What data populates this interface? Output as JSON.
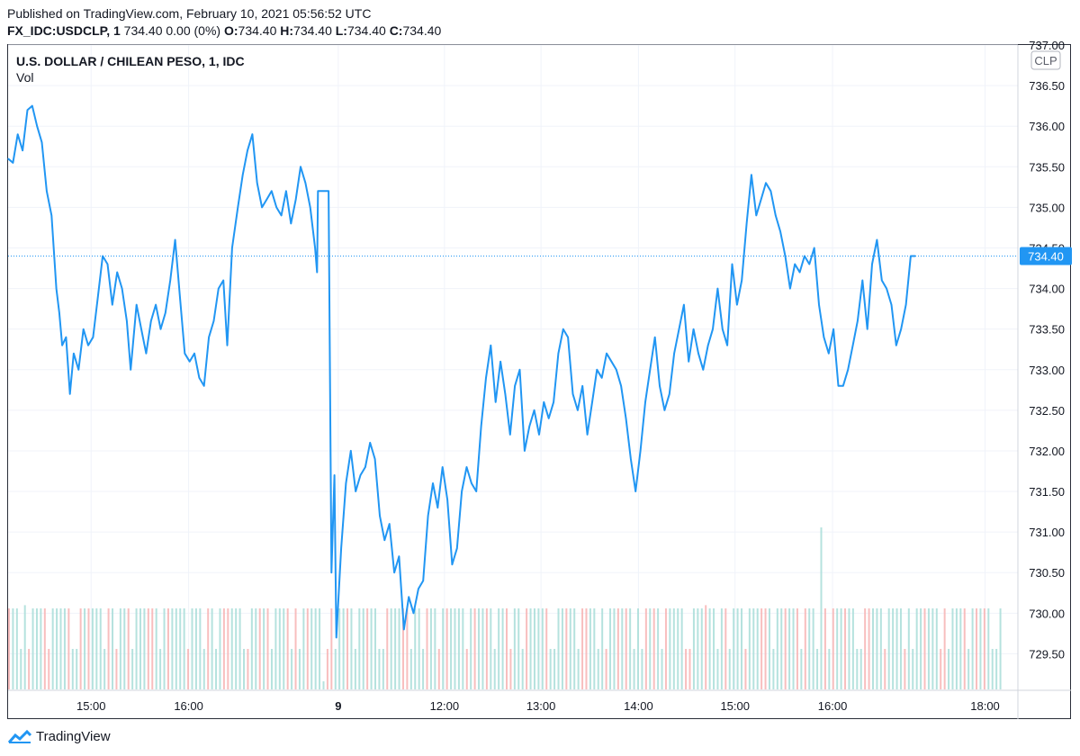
{
  "header": {
    "published": "Published on TradingView.com, February 10, 2021 05:56:52 UTC",
    "symbol": "FX_IDC:USDCLP, 1",
    "quote": " 734.40 0.00 (0%) ",
    "o_label": "O:",
    "o_value": "734.40",
    "h_label": "H:",
    "h_value": "734.40",
    "l_label": "L:",
    "l_value": "734.40",
    "c_label": "C:",
    "c_value": "734.40"
  },
  "footer": {
    "brand": "TradingView"
  },
  "colors": {
    "line": "#2196f3",
    "vol_up": "#a8ddd8",
    "vol_down": "#f7b3b3",
    "grid": "#f0f3fa",
    "last_price_bg": "#2196f3"
  },
  "chart_data": {
    "type": "line",
    "title": "U.S. DOLLAR / CHILEAN PESO, 1, IDC",
    "subtitle": "Vol",
    "currency": "CLP",
    "last_price": "734.40",
    "ylim": [
      729.05,
      737.0
    ],
    "y_ticks": [
      "737.00",
      "736.50",
      "736.00",
      "735.50",
      "735.00",
      "734.50",
      "734.00",
      "733.50",
      "733.00",
      "732.50",
      "732.00",
      "731.50",
      "731.00",
      "730.50",
      "730.00",
      "729.50"
    ],
    "x_ticks": [
      {
        "label": "15:00",
        "bold": false,
        "t": 8.6
      },
      {
        "label": "16:00",
        "bold": false,
        "t": 18.7
      },
      {
        "label": "9",
        "bold": true,
        "t": 34.2
      },
      {
        "label": "12:00",
        "bold": false,
        "t": 45.2
      },
      {
        "label": "13:00",
        "bold": false,
        "t": 55.2
      },
      {
        "label": "14:00",
        "bold": false,
        "t": 65.3
      },
      {
        "label": "15:00",
        "bold": false,
        "t": 75.3
      },
      {
        "label": "16:00",
        "bold": false,
        "t": 85.4
      },
      {
        "label": "18:00",
        "bold": false,
        "t": 101.2
      }
    ],
    "series": [
      {
        "values": [
          [
            0,
            735.6
          ],
          [
            0.5,
            735.55
          ],
          [
            1,
            735.9
          ],
          [
            1.5,
            735.7
          ],
          [
            2,
            736.2
          ],
          [
            2.5,
            736.25
          ],
          [
            3,
            736.0
          ],
          [
            3.5,
            735.8
          ],
          [
            4,
            735.2
          ],
          [
            4.5,
            734.9
          ],
          [
            5,
            734.0
          ],
          [
            5.3,
            733.7
          ],
          [
            5.6,
            733.3
          ],
          [
            6,
            733.4
          ],
          [
            6.4,
            732.7
          ],
          [
            6.8,
            733.2
          ],
          [
            7.3,
            733.0
          ],
          [
            7.8,
            733.5
          ],
          [
            8.3,
            733.3
          ],
          [
            8.8,
            733.4
          ],
          [
            9.3,
            733.9
          ],
          [
            9.8,
            734.4
          ],
          [
            10.3,
            734.3
          ],
          [
            10.8,
            733.8
          ],
          [
            11.3,
            734.2
          ],
          [
            11.8,
            734.0
          ],
          [
            12.3,
            733.6
          ],
          [
            12.7,
            733.0
          ],
          [
            13.3,
            733.8
          ],
          [
            13.8,
            733.5
          ],
          [
            14.3,
            733.2
          ],
          [
            14.8,
            733.6
          ],
          [
            15.3,
            733.8
          ],
          [
            15.8,
            733.5
          ],
          [
            16.3,
            733.7
          ],
          [
            16.8,
            734.1
          ],
          [
            17.3,
            734.6
          ],
          [
            17.8,
            733.9
          ],
          [
            18.3,
            733.2
          ],
          [
            18.8,
            733.1
          ],
          [
            19.3,
            733.2
          ],
          [
            19.8,
            732.9
          ],
          [
            20.3,
            732.8
          ],
          [
            20.8,
            733.4
          ],
          [
            21.3,
            733.6
          ],
          [
            21.8,
            734.0
          ],
          [
            22.3,
            734.1
          ],
          [
            22.7,
            733.3
          ],
          [
            23.2,
            734.5
          ],
          [
            23.8,
            735.0
          ],
          [
            24.3,
            735.4
          ],
          [
            24.8,
            735.7
          ],
          [
            25.3,
            735.9
          ],
          [
            25.8,
            735.3
          ],
          [
            26.3,
            735.0
          ],
          [
            26.8,
            735.1
          ],
          [
            27.3,
            735.2
          ],
          [
            27.8,
            735.0
          ],
          [
            28.3,
            734.9
          ],
          [
            28.8,
            735.2
          ],
          [
            29.3,
            734.8
          ],
          [
            29.8,
            735.1
          ],
          [
            30.3,
            735.5
          ],
          [
            30.8,
            735.3
          ],
          [
            31.3,
            735.0
          ],
          [
            31.8,
            734.5
          ],
          [
            32.0,
            734.2
          ],
          [
            32.1,
            735.2
          ],
          [
            33.2,
            735.2
          ],
          [
            33.5,
            730.5
          ],
          [
            33.8,
            731.7
          ],
          [
            34.0,
            729.7
          ],
          [
            34.5,
            730.8
          ],
          [
            35.0,
            731.6
          ],
          [
            35.5,
            732.0
          ],
          [
            36.0,
            731.5
          ],
          [
            36.5,
            731.7
          ],
          [
            37.0,
            731.8
          ],
          [
            37.5,
            732.1
          ],
          [
            38.0,
            731.9
          ],
          [
            38.5,
            731.2
          ],
          [
            39.0,
            730.9
          ],
          [
            39.5,
            731.1
          ],
          [
            40.0,
            730.5
          ],
          [
            40.5,
            730.7
          ],
          [
            41.0,
            729.8
          ],
          [
            41.5,
            730.2
          ],
          [
            42.0,
            730.0
          ],
          [
            42.5,
            730.3
          ],
          [
            43.0,
            730.4
          ],
          [
            43.5,
            731.2
          ],
          [
            44.0,
            731.6
          ],
          [
            44.5,
            731.3
          ],
          [
            45.0,
            731.8
          ],
          [
            45.5,
            731.4
          ],
          [
            46.0,
            730.6
          ],
          [
            46.5,
            730.8
          ],
          [
            47.0,
            731.5
          ],
          [
            47.5,
            731.8
          ],
          [
            48.0,
            731.6
          ],
          [
            48.5,
            731.5
          ],
          [
            49.0,
            732.3
          ],
          [
            49.5,
            732.9
          ],
          [
            50.0,
            733.3
          ],
          [
            50.5,
            732.6
          ],
          [
            51.0,
            733.1
          ],
          [
            51.5,
            732.7
          ],
          [
            52.0,
            732.2
          ],
          [
            52.5,
            732.8
          ],
          [
            53.0,
            733.0
          ],
          [
            53.5,
            732.0
          ],
          [
            54.0,
            732.3
          ],
          [
            54.5,
            732.5
          ],
          [
            55.0,
            732.2
          ],
          [
            55.5,
            732.6
          ],
          [
            56.0,
            732.4
          ],
          [
            56.5,
            732.6
          ],
          [
            57.0,
            733.2
          ],
          [
            57.5,
            733.5
          ],
          [
            58.0,
            733.4
          ],
          [
            58.5,
            732.7
          ],
          [
            59.0,
            732.5
          ],
          [
            59.5,
            732.8
          ],
          [
            60.0,
            732.2
          ],
          [
            60.5,
            732.6
          ],
          [
            61.0,
            733.0
          ],
          [
            61.5,
            732.9
          ],
          [
            62.0,
            733.2
          ],
          [
            62.5,
            733.1
          ],
          [
            63.0,
            733.0
          ],
          [
            63.5,
            732.8
          ],
          [
            64.0,
            732.4
          ],
          [
            64.5,
            731.9
          ],
          [
            65.0,
            731.5
          ],
          [
            65.5,
            732.0
          ],
          [
            66.0,
            732.6
          ],
          [
            66.5,
            733.0
          ],
          [
            67.0,
            733.4
          ],
          [
            67.5,
            732.8
          ],
          [
            68.0,
            732.5
          ],
          [
            68.5,
            732.7
          ],
          [
            69.0,
            733.2
          ],
          [
            69.5,
            733.5
          ],
          [
            70.0,
            733.8
          ],
          [
            70.5,
            733.1
          ],
          [
            71.0,
            733.5
          ],
          [
            71.5,
            733.2
          ],
          [
            72.0,
            733.0
          ],
          [
            72.5,
            733.3
          ],
          [
            73.0,
            733.5
          ],
          [
            73.5,
            734.0
          ],
          [
            74.0,
            733.5
          ],
          [
            74.5,
            733.3
          ],
          [
            75.0,
            734.3
          ],
          [
            75.5,
            733.8
          ],
          [
            76.0,
            734.1
          ],
          [
            76.5,
            734.8
          ],
          [
            77.0,
            735.4
          ],
          [
            77.5,
            734.9
          ],
          [
            78.0,
            735.1
          ],
          [
            78.5,
            735.3
          ],
          [
            79.0,
            735.2
          ],
          [
            79.5,
            734.9
          ],
          [
            80.0,
            734.7
          ],
          [
            80.5,
            734.4
          ],
          [
            81.0,
            734.0
          ],
          [
            81.5,
            734.3
          ],
          [
            82.0,
            734.2
          ],
          [
            82.5,
            734.4
          ],
          [
            83.0,
            734.3
          ],
          [
            83.5,
            734.5
          ],
          [
            84.0,
            733.8
          ],
          [
            84.5,
            733.4
          ],
          [
            85.0,
            733.2
          ],
          [
            85.5,
            733.5
          ],
          [
            86.0,
            732.8
          ],
          [
            86.5,
            732.8
          ],
          [
            87.0,
            733.0
          ],
          [
            87.5,
            733.3
          ],
          [
            88.0,
            733.6
          ],
          [
            88.5,
            734.1
          ],
          [
            89.0,
            733.5
          ],
          [
            89.5,
            734.3
          ],
          [
            90.0,
            734.6
          ],
          [
            90.5,
            734.1
          ],
          [
            91.0,
            734.0
          ],
          [
            91.5,
            733.8
          ],
          [
            92.0,
            733.3
          ],
          [
            92.5,
            733.5
          ],
          [
            93.0,
            733.8
          ],
          [
            93.5,
            734.4
          ],
          [
            94.0,
            734.4
          ]
        ]
      }
    ],
    "volume": {
      "count": 250,
      "spikes": [
        {
          "i": 4,
          "h": 0.52
        },
        {
          "i": 79,
          "h": 0.05
        },
        {
          "i": 175,
          "h": 0.52
        },
        {
          "i": 204,
          "h": 1.0
        }
      ]
    }
  }
}
